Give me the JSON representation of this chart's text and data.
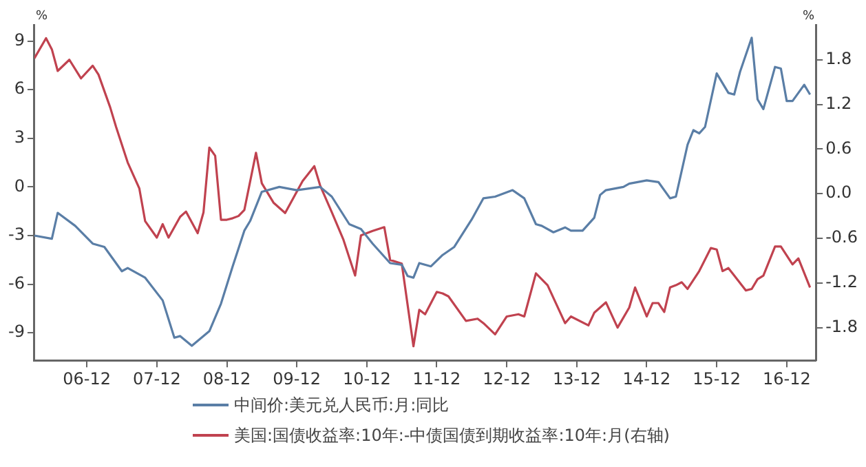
{
  "chart_data": {
    "type": "line",
    "ylabel": "%",
    "y2label": "%",
    "xlim": [
      "2006-03",
      "2017-05"
    ],
    "xticks": [
      {
        "value": "2006-12",
        "label": "06-12"
      },
      {
        "value": "2007-12",
        "label": "07-12"
      },
      {
        "value": "2008-12",
        "label": "08-12"
      },
      {
        "value": "2009-12",
        "label": "09-12"
      },
      {
        "value": "2010-12",
        "label": "10-12"
      },
      {
        "value": "2011-12",
        "label": "11-12"
      },
      {
        "value": "2012-12",
        "label": "12-12"
      },
      {
        "value": "2013-12",
        "label": "13-12"
      },
      {
        "value": "2014-12",
        "label": "14-12"
      },
      {
        "value": "2015-12",
        "label": "15-12"
      },
      {
        "value": "2016-12",
        "label": "16-12"
      }
    ],
    "ylim": [
      -10.7,
      10
    ],
    "yticks": [
      -9,
      -6,
      -3,
      0,
      3,
      6,
      9
    ],
    "y2lim": [
      -2.24,
      2.27
    ],
    "y2ticks": [
      {
        "value": -1.8,
        "label": "-1.8"
      },
      {
        "value": -1.2,
        "label": "-1.2"
      },
      {
        "value": -0.6,
        "label": "-0.6"
      },
      {
        "value": 0,
        "label": "0.0"
      },
      {
        "value": 0.6,
        "label": "0.6"
      },
      {
        "value": 1.2,
        "label": "1.2"
      },
      {
        "value": 1.8,
        "label": "1.8"
      }
    ],
    "grid": false,
    "legend": "bottom",
    "marker": "none",
    "line_style": "solid",
    "series": [
      {
        "name": "中间价:美元兑人民币:月:同比",
        "color": "#5a7ea6",
        "x": [
          "2006-03",
          "2006-06",
          "2006-07",
          "2006-10",
          "2007-01",
          "2007-03",
          "2007-06",
          "2007-07",
          "2007-10",
          "2008-01",
          "2008-03",
          "2008-04",
          "2008-06",
          "2008-09",
          "2008-11",
          "2009-01",
          "2009-03",
          "2009-04",
          "2009-06",
          "2009-09",
          "2009-12",
          "2010-04",
          "2010-06",
          "2010-09",
          "2010-11",
          "2011-01",
          "2011-04",
          "2011-06",
          "2011-07",
          "2011-08",
          "2011-09",
          "2011-11",
          "2012-01",
          "2012-03",
          "2012-06",
          "2012-08",
          "2012-10",
          "2013-01",
          "2013-03",
          "2013-05",
          "2013-06",
          "2013-08",
          "2013-10",
          "2013-11",
          "2014-01",
          "2014-03",
          "2014-04",
          "2014-05",
          "2014-08",
          "2014-09",
          "2014-12",
          "2015-02",
          "2015-04",
          "2015-05",
          "2015-07",
          "2015-08",
          "2015-09",
          "2015-10",
          "2015-12",
          "2016-02",
          "2016-03",
          "2016-04",
          "2016-06",
          "2016-07",
          "2016-08",
          "2016-10",
          "2016-11",
          "2016-12",
          "2017-01",
          "2017-03",
          "2017-04"
        ],
        "values": [
          -3.0,
          -3.2,
          -1.6,
          -2.4,
          -3.5,
          -3.7,
          -5.2,
          -5.0,
          -5.6,
          -7.0,
          -9.3,
          -9.2,
          -9.8,
          -8.9,
          -7.2,
          -4.9,
          -2.7,
          -2.1,
          -0.3,
          0.0,
          -0.2,
          0.0,
          -0.6,
          -2.3,
          -2.6,
          -3.5,
          -4.7,
          -4.8,
          -5.5,
          -5.6,
          -4.7,
          -4.9,
          -4.2,
          -3.7,
          -2.0,
          -0.7,
          -0.6,
          -0.2,
          -0.7,
          -2.3,
          -2.4,
          -2.8,
          -2.5,
          -2.7,
          -2.7,
          -1.9,
          -0.5,
          -0.2,
          0.0,
          0.2,
          0.4,
          0.3,
          -0.7,
          -0.6,
          2.6,
          3.5,
          3.3,
          3.7,
          7.0,
          5.8,
          5.7,
          7.1,
          9.2,
          5.4,
          4.8,
          7.4,
          7.3,
          5.3,
          5.3,
          6.3,
          5.7
        ]
      },
      {
        "name": "美国:国债收益率:10年:-中债国债到期收益率:10年:月(右轴)",
        "color": "#c0424f",
        "axis": "y2",
        "x": [
          "2006-03",
          "2006-05",
          "2006-06",
          "2006-07",
          "2006-09",
          "2006-11",
          "2007-01",
          "2007-02",
          "2007-04",
          "2007-05",
          "2007-07",
          "2007-09",
          "2007-10",
          "2007-12",
          "2008-01",
          "2008-02",
          "2008-04",
          "2008-05",
          "2008-07",
          "2008-08",
          "2008-09",
          "2008-10",
          "2008-11",
          "2008-12",
          "2009-01",
          "2009-02",
          "2009-03",
          "2009-05",
          "2009-06",
          "2009-08",
          "2009-10",
          "2010-01",
          "2010-03",
          "2010-04",
          "2010-06",
          "2010-08",
          "2010-10",
          "2010-11",
          "2011-01",
          "2011-03",
          "2011-04",
          "2011-06",
          "2011-08",
          "2011-09",
          "2011-10",
          "2011-12",
          "2012-01",
          "2012-02",
          "2012-05",
          "2012-07",
          "2012-08",
          "2012-10",
          "2012-12",
          "2013-02",
          "2013-03",
          "2013-05",
          "2013-07",
          "2013-10",
          "2013-11",
          "2014-02",
          "2014-03",
          "2014-05",
          "2014-07",
          "2014-09",
          "2014-10",
          "2014-12",
          "2015-01",
          "2015-02",
          "2015-03",
          "2015-04",
          "2015-05",
          "2015-06",
          "2015-07",
          "2015-09",
          "2015-11",
          "2015-12",
          "2016-01",
          "2016-02",
          "2016-03",
          "2016-05",
          "2016-06",
          "2016-07",
          "2016-08",
          "2016-10",
          "2016-11",
          "2017-01",
          "2017-02",
          "2017-04"
        ],
        "values": [
          1.82,
          2.09,
          1.94,
          1.65,
          1.8,
          1.55,
          1.72,
          1.6,
          1.16,
          0.9,
          0.42,
          0.07,
          -0.37,
          -0.59,
          -0.41,
          -0.59,
          -0.31,
          -0.24,
          -0.53,
          -0.25,
          0.62,
          0.51,
          -0.35,
          -0.35,
          -0.33,
          -0.3,
          -0.22,
          0.55,
          0.14,
          -0.12,
          -0.26,
          0.17,
          0.37,
          0.11,
          -0.25,
          -0.62,
          -1.1,
          -0.56,
          -0.5,
          -0.45,
          -0.89,
          -0.94,
          -2.05,
          -1.56,
          -1.62,
          -1.32,
          -1.34,
          -1.38,
          -1.71,
          -1.68,
          -1.74,
          -1.89,
          -1.65,
          -1.62,
          -1.65,
          -1.07,
          -1.23,
          -1.74,
          -1.65,
          -1.77,
          -1.6,
          -1.46,
          -1.8,
          -1.53,
          -1.26,
          -1.65,
          -1.47,
          -1.47,
          -1.59,
          -1.26,
          -1.23,
          -1.19,
          -1.28,
          -1.04,
          -0.73,
          -0.75,
          -1.04,
          -1.0,
          -1.1,
          -1.3,
          -1.28,
          -1.15,
          -1.1,
          -0.71,
          -0.71,
          -0.95,
          -0.87,
          -1.26
        ]
      }
    ]
  }
}
